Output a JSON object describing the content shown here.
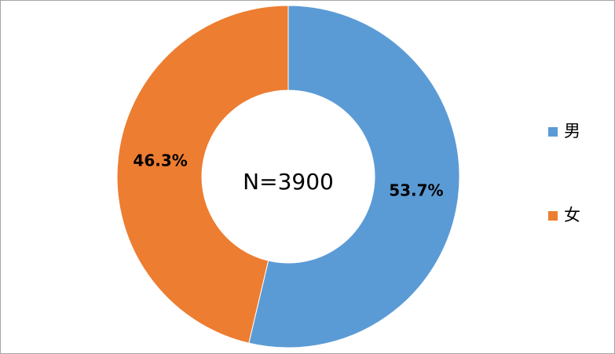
{
  "chart_data": {
    "type": "donut",
    "categories": [
      "男",
      "女"
    ],
    "values": [
      53.7,
      46.3
    ],
    "value_labels": [
      "53.7%",
      "46.3%"
    ],
    "colors": [
      "#5b9bd5",
      "#ed7d31"
    ],
    "annotation": "N=3900",
    "legend": "right"
  }
}
